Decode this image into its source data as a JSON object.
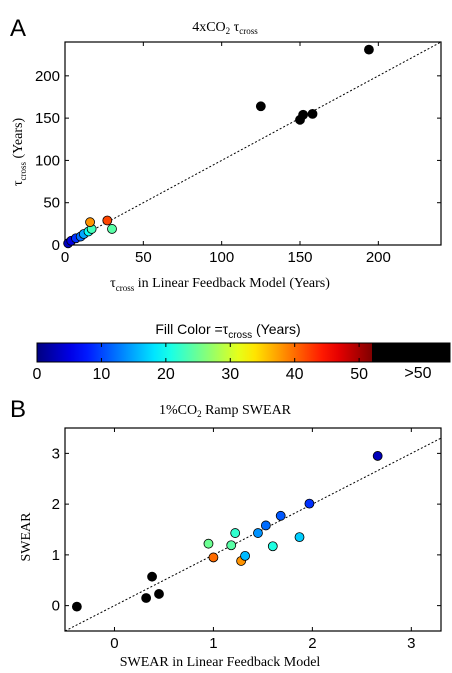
{
  "chart_data": [
    {
      "panel_letter": "A",
      "type": "scatter",
      "title": "4xCO",
      "title_sub": "2",
      "title_sym": "τ",
      "title_sym_sub": "cross",
      "xlabel_sym": "τ",
      "xlabel_sym_sub": "cross",
      "xlabel": " in Linear Feedback Model (Years)",
      "ylabel_sym": "τ",
      "ylabel_sym_sub": "cross",
      "ylabel": " (Years)",
      "xlim": [
        0,
        240
      ],
      "ylim": [
        0,
        240
      ],
      "xticks": [
        0,
        50,
        100,
        150,
        200
      ],
      "yticks": [
        0,
        50,
        100,
        150,
        200
      ],
      "one_to_one_line": true,
      "points": [
        {
          "x": 2,
          "y": 2,
          "c": 3
        },
        {
          "x": 4,
          "y": 5,
          "c": 5
        },
        {
          "x": 7,
          "y": 8,
          "c": 9
        },
        {
          "x": 10,
          "y": 10,
          "c": 12
        },
        {
          "x": 12,
          "y": 13,
          "c": 15
        },
        {
          "x": 15,
          "y": 16,
          "c": 20
        },
        {
          "x": 17,
          "y": 19,
          "c": 23
        },
        {
          "x": 16,
          "y": 27,
          "c": 38
        },
        {
          "x": 27,
          "y": 29,
          "c": 42
        },
        {
          "x": 30,
          "y": 19,
          "c": 24
        },
        {
          "x": 125,
          "y": 164,
          "c": 60
        },
        {
          "x": 150,
          "y": 148,
          "c": 60
        },
        {
          "x": 152,
          "y": 154,
          "c": 60
        },
        {
          "x": 158,
          "y": 155,
          "c": 60
        },
        {
          "x": 194,
          "y": 231,
          "c": 60
        }
      ]
    },
    {
      "panel_letter": "B",
      "type": "scatter",
      "title": "1%CO",
      "title_sub": "2",
      "title_rest": " Ramp  SWEAR",
      "xlabel": "SWEAR in Linear Feedback Model",
      "ylabel": "SWEAR",
      "xlim": [
        -0.5,
        3.3
      ],
      "ylim": [
        -0.5,
        3.5
      ],
      "xticks": [
        0,
        1,
        2,
        3
      ],
      "yticks": [
        0,
        1,
        2,
        3
      ],
      "one_to_one_line": true,
      "points": [
        {
          "x": -0.38,
          "y": -0.02,
          "c": 60
        },
        {
          "x": 0.32,
          "y": 0.15,
          "c": 60
        },
        {
          "x": 0.38,
          "y": 0.57,
          "c": 60
        },
        {
          "x": 0.45,
          "y": 0.23,
          "c": 60
        },
        {
          "x": 0.95,
          "y": 1.22,
          "c": 25
        },
        {
          "x": 1.0,
          "y": 0.95,
          "c": 40
        },
        {
          "x": 1.18,
          "y": 1.19,
          "c": 24
        },
        {
          "x": 1.22,
          "y": 1.43,
          "c": 22
        },
        {
          "x": 1.28,
          "y": 0.88,
          "c": 38
        },
        {
          "x": 1.32,
          "y": 0.98,
          "c": 16
        },
        {
          "x": 1.45,
          "y": 1.43,
          "c": 14
        },
        {
          "x": 1.53,
          "y": 1.58,
          "c": 12
        },
        {
          "x": 1.6,
          "y": 1.17,
          "c": 21
        },
        {
          "x": 1.68,
          "y": 1.77,
          "c": 11
        },
        {
          "x": 1.87,
          "y": 1.35,
          "c": 17
        },
        {
          "x": 1.97,
          "y": 2.01,
          "c": 9
        },
        {
          "x": 2.66,
          "y": 2.95,
          "c": 3
        }
      ]
    }
  ],
  "colorbar": {
    "title_prefix": "Fill Color =",
    "title_sym": "τ",
    "title_sym_sub": "cross",
    "title_suffix": "  (Years)",
    "range": [
      0,
      52
    ],
    "ticks": [
      0,
      10,
      20,
      30,
      40,
      50
    ],
    "over_label": ">50",
    "over_color": "#000000"
  }
}
